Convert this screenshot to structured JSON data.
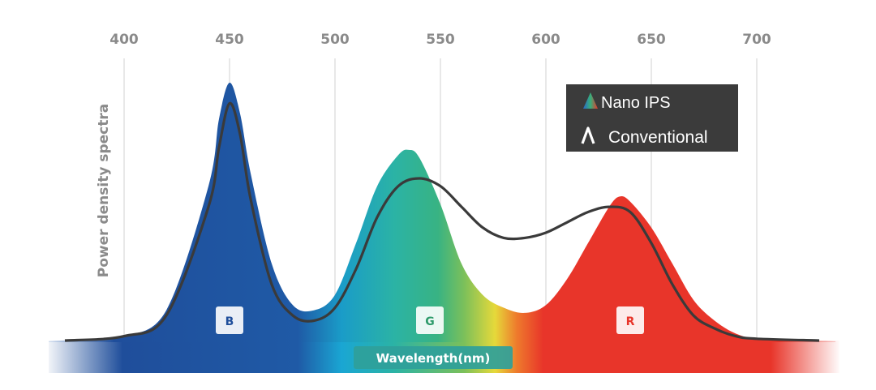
{
  "chart_data": {
    "type": "line",
    "title": "",
    "ylabel": "Power density spectra",
    "xlabel": "Wavelength(nm)",
    "xlim": [
      400,
      700
    ],
    "x_ticks": [
      "400",
      "450",
      "500",
      "550",
      "600",
      "650",
      "700"
    ],
    "grid": true,
    "legend": {
      "position": "top-right"
    },
    "series": [
      {
        "name": "Nano IPS",
        "style": "filled-area, spectral gradient",
        "x": [
          400,
          420,
          440,
          445,
          450,
          455,
          460,
          470,
          480,
          490,
          500,
          510,
          520,
          530,
          535,
          540,
          550,
          560,
          570,
          580,
          590,
          600,
          610,
          620,
          630,
          635,
          640,
          650,
          660,
          670,
          680,
          690,
          700
        ],
        "y": [
          0.02,
          0.12,
          0.6,
          0.86,
          1.0,
          0.88,
          0.65,
          0.3,
          0.14,
          0.12,
          0.18,
          0.38,
          0.6,
          0.72,
          0.74,
          0.71,
          0.53,
          0.3,
          0.18,
          0.13,
          0.11,
          0.14,
          0.24,
          0.38,
          0.52,
          0.56,
          0.54,
          0.44,
          0.3,
          0.16,
          0.08,
          0.03,
          0.01
        ]
      },
      {
        "name": "Conventional",
        "style": "dark line",
        "x": [
          400,
          420,
          440,
          445,
          450,
          455,
          460,
          470,
          480,
          490,
          500,
          510,
          520,
          530,
          540,
          550,
          560,
          570,
          580,
          590,
          600,
          610,
          620,
          630,
          640,
          650,
          660,
          670,
          680,
          690,
          700
        ],
        "y": [
          0.02,
          0.1,
          0.52,
          0.75,
          0.92,
          0.8,
          0.55,
          0.22,
          0.1,
          0.08,
          0.13,
          0.28,
          0.48,
          0.6,
          0.63,
          0.6,
          0.52,
          0.44,
          0.4,
          0.4,
          0.42,
          0.46,
          0.5,
          0.52,
          0.5,
          0.38,
          0.22,
          0.1,
          0.05,
          0.02,
          0.01
        ]
      }
    ],
    "band_labels": [
      {
        "text": "B",
        "x": 450,
        "color": "#1f4e9b"
      },
      {
        "text": "G",
        "x": 545,
        "color": "#2d9a6a"
      },
      {
        "text": "R",
        "x": 640,
        "color": "#e8352a"
      }
    ]
  },
  "legend": {
    "nano_label": "Nano IPS",
    "conventional_label": "Conventional",
    "nano_icon": "spectral-triangle-icon",
    "conventional_icon": "caret-icon"
  },
  "colors": {
    "blue": "#1f4e9b",
    "green": "#2daf83",
    "yellow": "#e4d93a",
    "red": "#e8352a",
    "line": "#3a3a3a",
    "legend_bg": "#3b3b3b"
  }
}
